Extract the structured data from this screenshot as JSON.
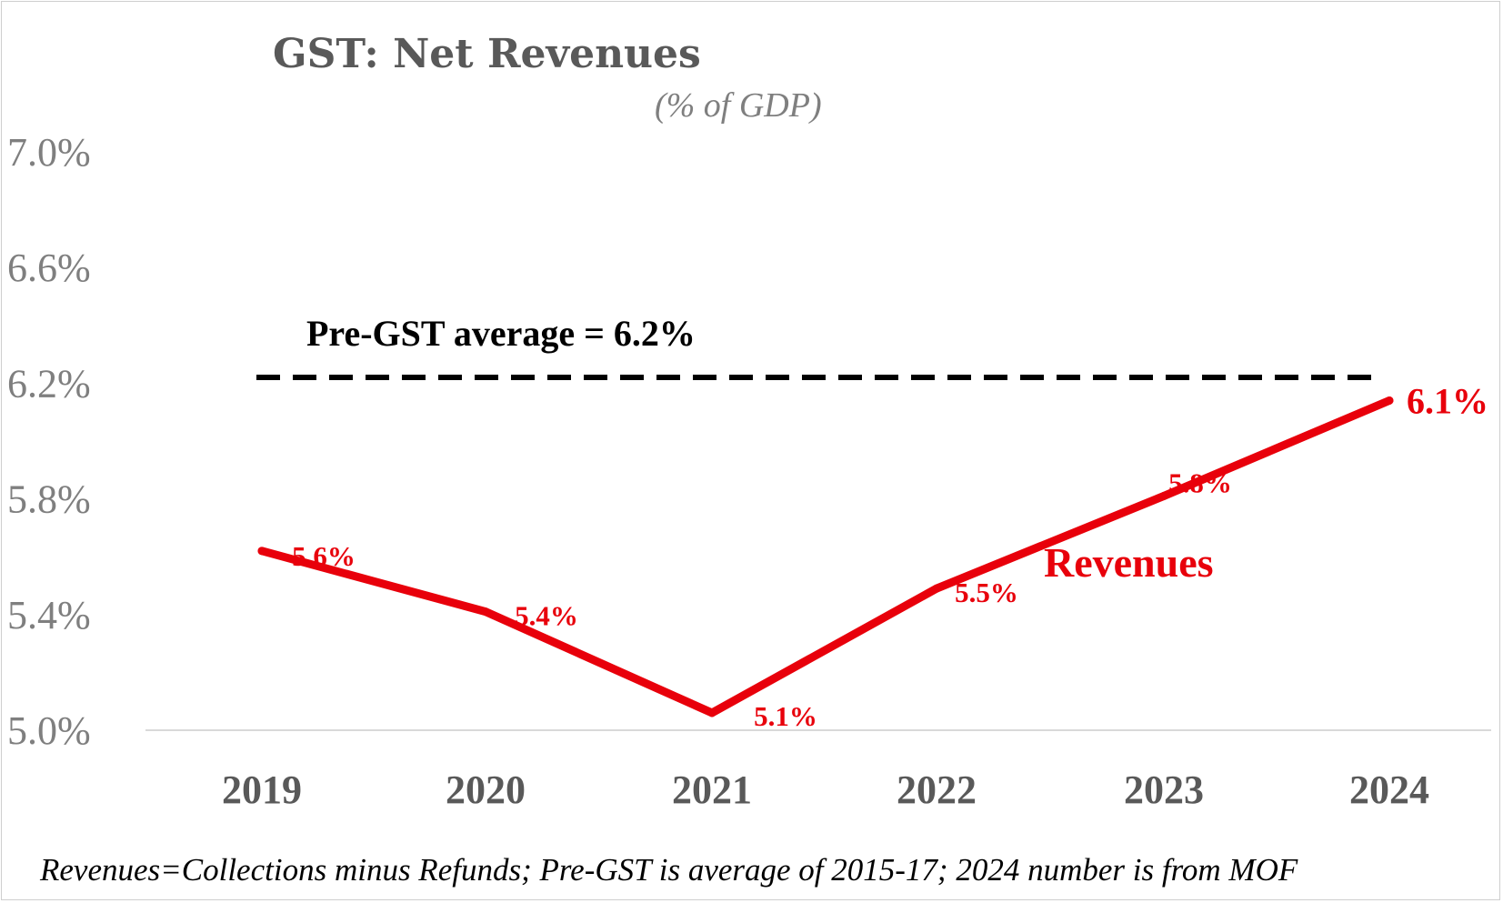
{
  "chart_data": {
    "type": "line",
    "title": "GST: Net Revenues",
    "subtitle": "(% of GDP)",
    "categories": [
      "2019",
      "2020",
      "2021",
      "2022",
      "2023",
      "2024"
    ],
    "series": [
      {
        "name": "Revenues",
        "values": [
          5.62,
          5.41,
          5.06,
          5.49,
          5.81,
          6.14
        ],
        "labels": [
          "5.6%",
          "5.4%",
          "5.1%",
          "5.5%",
          "5.8%",
          "6.1%"
        ],
        "color": "#e8000b"
      }
    ],
    "reference_line": {
      "value": 6.22,
      "label": "Pre-GST average = 6.2%",
      "style": "dashed",
      "color": "#000000"
    },
    "ylim": [
      5.0,
      7.0
    ],
    "yticks": [
      "5.0%",
      "5.4%",
      "5.8%",
      "6.2%",
      "6.6%",
      "7.0%"
    ],
    "ytick_values": [
      5.0,
      5.4,
      5.8,
      6.2,
      6.6,
      7.0
    ],
    "grid": false,
    "note": "Revenues=Collections minus Refunds; Pre-GST is average of 2015-17; 2024 number is from MOF"
  }
}
